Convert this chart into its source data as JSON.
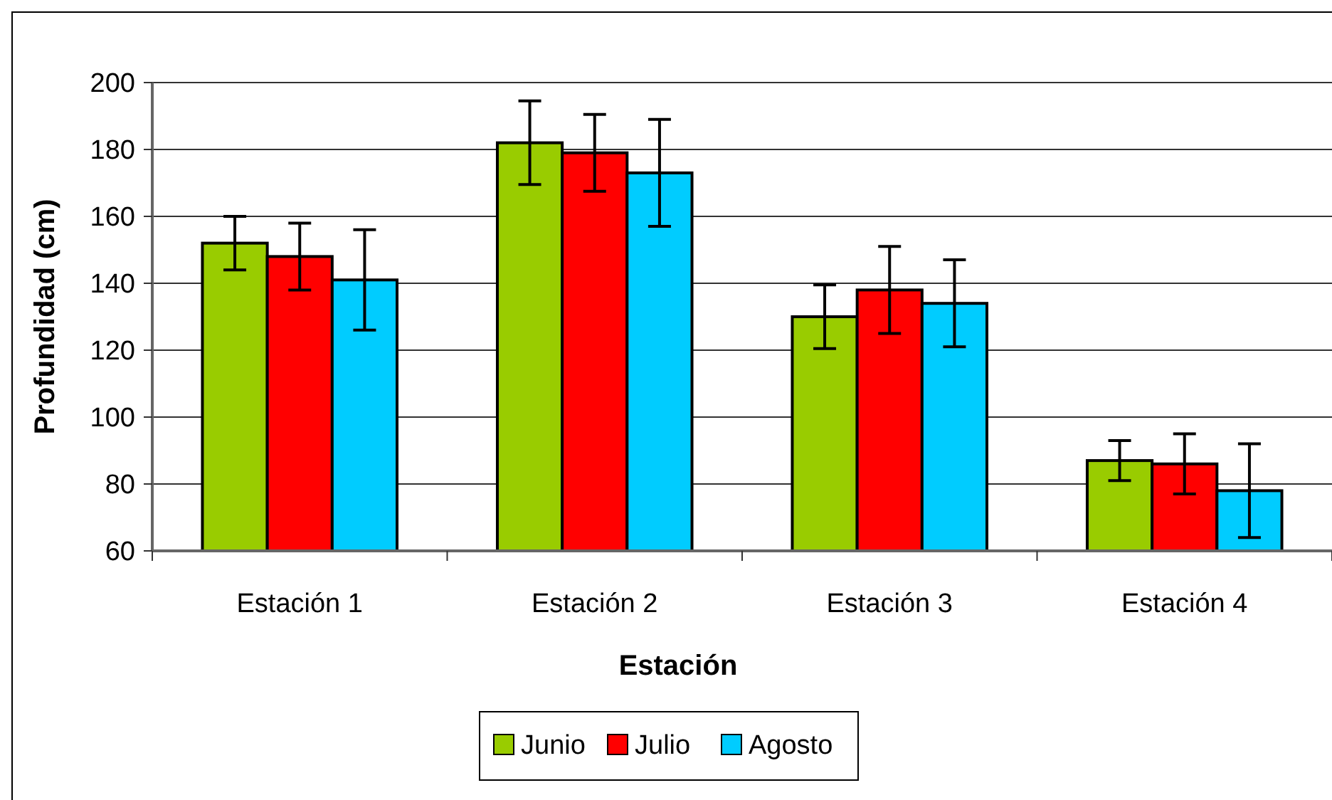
{
  "chart_data": {
    "type": "bar",
    "xlabel": "Estación",
    "ylabel": "Profundidad (cm)",
    "categories": [
      "Estación 1",
      "Estación 2",
      "Estación 3",
      "Estación 4"
    ],
    "series": [
      {
        "name": "Junio",
        "color": "#99cc00",
        "values": [
          152,
          182,
          130,
          87
        ],
        "errors": [
          8,
          12.5,
          9.5,
          6
        ]
      },
      {
        "name": "Julio",
        "color": "#ff0000",
        "values": [
          148,
          179,
          138,
          86
        ],
        "errors": [
          10,
          11.5,
          13,
          9
        ]
      },
      {
        "name": "Agosto",
        "color": "#00ccff",
        "values": [
          141,
          173,
          134,
          78
        ],
        "errors": [
          15,
          16,
          13,
          14
        ]
      }
    ],
    "ylim": [
      60,
      200
    ],
    "yticks": [
      60,
      80,
      100,
      120,
      140,
      160,
      180,
      200
    ],
    "grid": "y",
    "legend": "bottom"
  }
}
